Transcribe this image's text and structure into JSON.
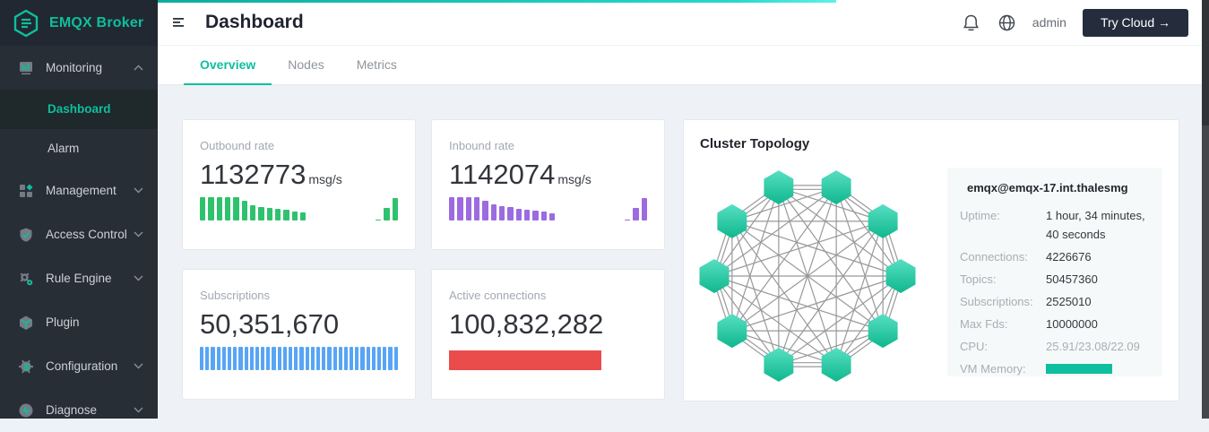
{
  "app": {
    "name": "EMQX Broker"
  },
  "colors": {
    "accent": "#0dbf9e",
    "sidebar_bg": "#282e36",
    "content_bg": "#eef1f5",
    "outbound_green": "#2fc26e",
    "inbound_purple": "#9d6be0",
    "subscriptions_blue": "#57a5f4",
    "connections_red": "#ea4c4c"
  },
  "topbar": {
    "title": "Dashboard",
    "user": "admin",
    "try_cloud_label": "Try Cloud →"
  },
  "tabs": [
    {
      "label": "Overview",
      "active": true
    },
    {
      "label": "Nodes",
      "active": false
    },
    {
      "label": "Metrics",
      "active": false
    }
  ],
  "sidebar": {
    "items": [
      {
        "label": "Monitoring",
        "icon": "bar-chart-icon",
        "expanded": true
      },
      {
        "label": "Dashboard",
        "active": true
      },
      {
        "label": "Alarm",
        "active": false
      },
      {
        "label": "Management",
        "icon": "grid-diamond-icon"
      },
      {
        "label": "Access Control",
        "icon": "shield-check-icon"
      },
      {
        "label": "Rule Engine",
        "icon": "gears-icon"
      },
      {
        "label": "Plugin",
        "icon": "cube-icon"
      },
      {
        "label": "Configuration",
        "icon": "gear-lines-icon"
      },
      {
        "label": "Diagnose",
        "icon": "diagnose-icon"
      }
    ]
  },
  "cards": [
    {
      "label": "Outbound rate",
      "value": "1132773",
      "unit": "msg/s"
    },
    {
      "label": "Inbound rate",
      "value": "1142074",
      "unit": "msg/s"
    },
    {
      "label": "Subscriptions",
      "value": "50,351,670",
      "unit": ""
    },
    {
      "label": "Active connections",
      "value": "100,832,282",
      "unit": ""
    }
  ],
  "chart_data": [
    {
      "type": "bar",
      "title": "Outbound rate trend",
      "ylabel": "msg/s",
      "color": "#2fc26e",
      "values": [
        100,
        100,
        100,
        100,
        100,
        84,
        66,
        59,
        54,
        49,
        45,
        40,
        33,
        0,
        0,
        0,
        0,
        0,
        0,
        0,
        0,
        4,
        52,
        96
      ]
    },
    {
      "type": "bar",
      "title": "Inbound rate trend",
      "ylabel": "msg/s",
      "color": "#9d6be0",
      "values": [
        100,
        100,
        100,
        100,
        86,
        70,
        62,
        56,
        51,
        46,
        42,
        37,
        30,
        0,
        0,
        0,
        0,
        0,
        0,
        0,
        0,
        4,
        52,
        96
      ]
    },
    {
      "type": "bar",
      "title": "Subscriptions level",
      "color": "#57a5f4",
      "values": [
        100,
        100,
        100,
        100,
        100,
        100,
        100,
        100,
        100,
        100,
        100,
        100,
        100,
        100,
        100,
        100,
        100,
        100,
        100,
        100,
        100,
        100,
        100,
        100,
        100,
        100,
        100,
        100,
        100,
        100,
        100,
        100,
        100,
        100,
        100,
        100
      ]
    },
    {
      "type": "bar",
      "title": "Active connections level",
      "color": "#ea4c4c",
      "values": [
        77
      ]
    }
  ],
  "topology": {
    "title": "Cluster Topology",
    "node_count": 10,
    "node_shape": "hexagon",
    "layout": "circle",
    "edge_color": "#98999b",
    "node_gradient": [
      "#57dfc3",
      "#0fb78d"
    ]
  },
  "node_info": {
    "name": "emqx@emqx-17.int.thalesmg",
    "rows": [
      {
        "label": "Uptime:",
        "value": "1 hour, 34 minutes, 40 seconds"
      },
      {
        "label": "Connections:",
        "value": "4226676"
      },
      {
        "label": "Topics:",
        "value": "50457360"
      },
      {
        "label": "Subscriptions:",
        "value": "2525010"
      },
      {
        "label": "Max Fds:",
        "value": "10000000"
      },
      {
        "label": "CPU:",
        "value": "25.91/23.08/22.09"
      },
      {
        "label": "VM Memory:",
        "value": ""
      }
    ]
  }
}
